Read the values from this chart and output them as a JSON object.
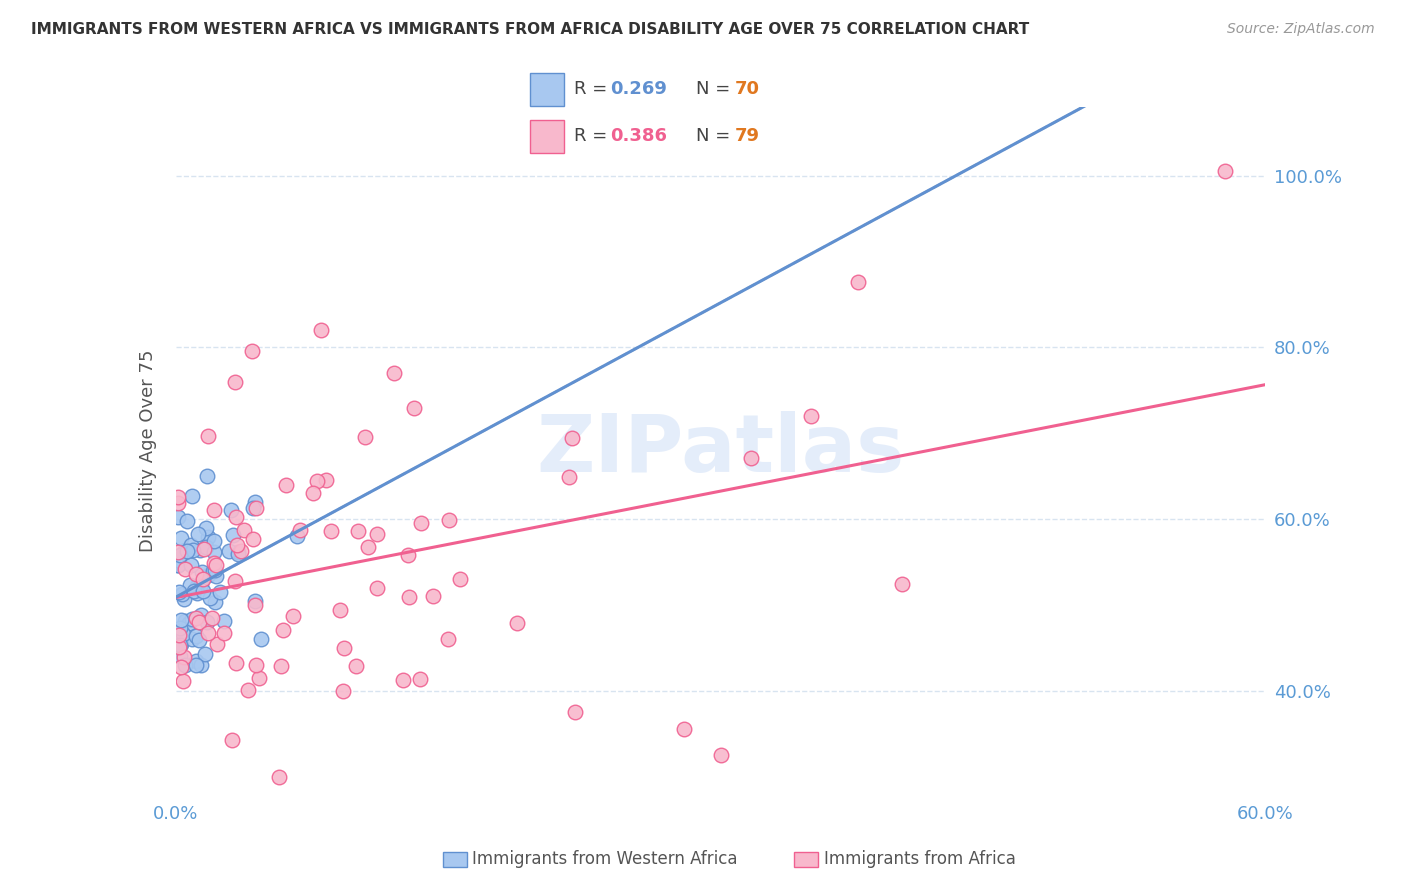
{
  "title": "IMMIGRANTS FROM WESTERN AFRICA VS IMMIGRANTS FROM AFRICA DISABILITY AGE OVER 75 CORRELATION CHART",
  "source": "Source: ZipAtlas.com",
  "ylabel": "Disability Age Over 75",
  "xlim": [
    0.0,
    0.6
  ],
  "ylim": [
    0.28,
    1.08
  ],
  "y_ticks": [
    0.4,
    0.6,
    0.8,
    1.0
  ],
  "y_tick_labels": [
    "40.0%",
    "60.0%",
    "80.0%",
    "100.0%"
  ],
  "series1_label": "Immigrants from Western Africa",
  "series2_label": "Immigrants from Africa",
  "series1_color": "#A8C8F0",
  "series2_color": "#F8B8CC",
  "series1_edge_color": "#6090D0",
  "series2_edge_color": "#F06090",
  "series1_line_color": "#6090D0",
  "series2_line_color": "#F06090",
  "dash_color": "#BBBBBB",
  "legend_R1_val": "0.269",
  "legend_N1_val": "70",
  "legend_R2_val": "0.386",
  "legend_N2_val": "79",
  "title_color": "#333333",
  "axis_label_color": "#5B9BD5",
  "watermark": "ZIPatlas",
  "grid_color": "#D8E4F0",
  "N_color": "#E07820",
  "R_color_1": "#6090D0",
  "R_color_2": "#F06090"
}
